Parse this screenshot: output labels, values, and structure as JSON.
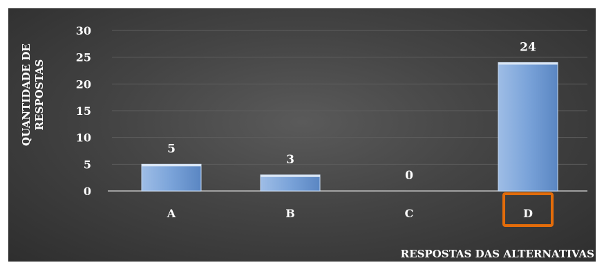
{
  "chart_data": {
    "type": "bar",
    "categories": [
      "A",
      "B",
      "C",
      "D"
    ],
    "values": [
      5,
      3,
      0,
      24
    ],
    "data_labels": [
      "5",
      "3",
      "0",
      "24"
    ],
    "xlabel": "RESPOSTAS DAS ALTERNATIVAS",
    "ylabel_lines": [
      "QUANTIDADE DE",
      "RESPOSTAS"
    ],
    "ylim": [
      0,
      30
    ],
    "yticks": [
      0,
      5,
      10,
      15,
      20,
      25,
      30
    ],
    "grid": true,
    "legend": "none",
    "highlighted_category": "D",
    "colors": {
      "background": "#444444",
      "bar": "#8db3e2",
      "bar_edge": "#c6d9f1",
      "highlight_box": "#e36c0a",
      "text": "#ffffff",
      "grid": "#5e5e5e"
    }
  }
}
